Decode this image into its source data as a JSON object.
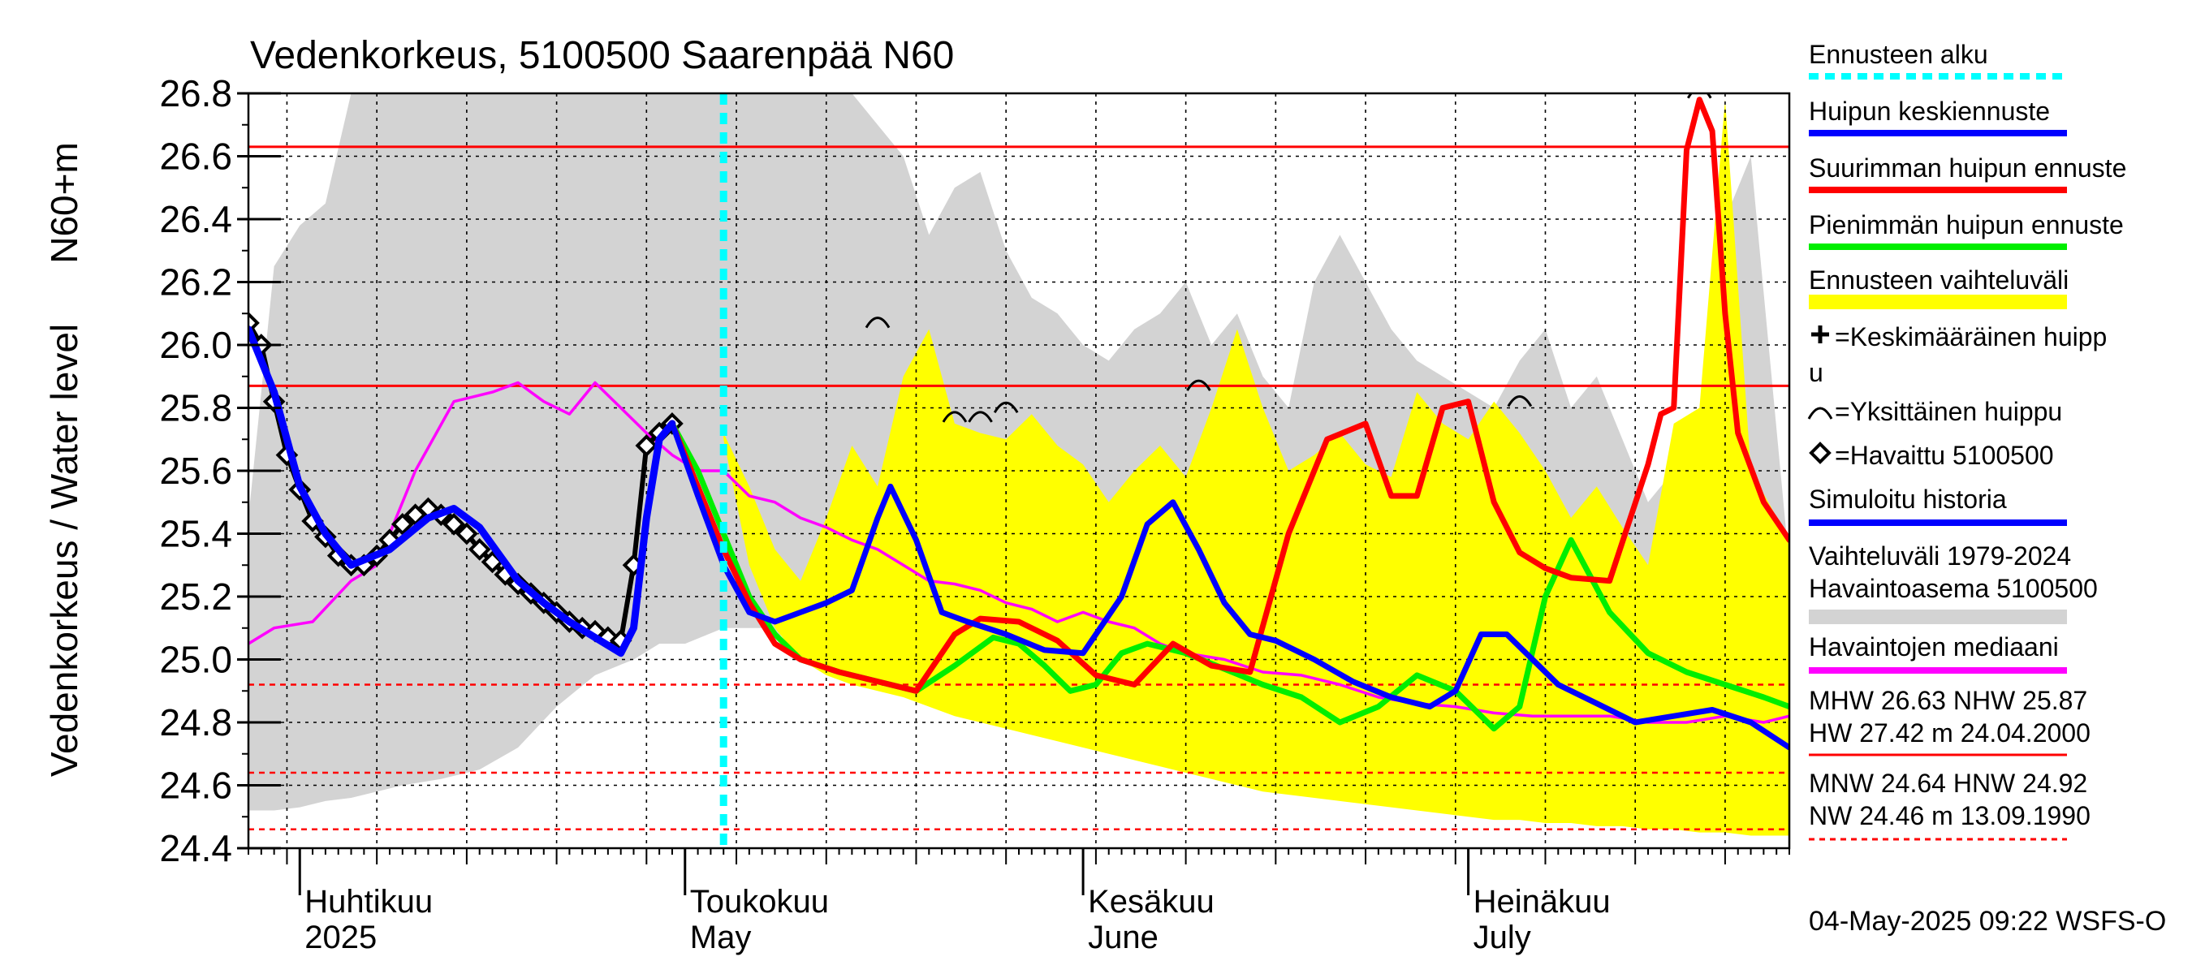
{
  "chart_data": {
    "type": "line",
    "title": "Vedenkorkeus, 5100500 Saarenpää N60",
    "ylabel_left": "Vedenkorkeus / Water level",
    "ylabel_unit": "N60+m",
    "ylim": [
      24.4,
      26.8
    ],
    "yticks": [
      "24.4",
      "24.6",
      "24.8",
      "25.0",
      "25.2",
      "25.4",
      "25.6",
      "25.8",
      "26.0",
      "26.2",
      "26.4",
      "26.6",
      "26.8"
    ],
    "xlim": [
      "2025-03-28",
      "2025-07-26"
    ],
    "month_labels": [
      {
        "date": "2025-04-01",
        "fi": "Huhtikuu",
        "en": "2025"
      },
      {
        "date": "2025-05-01",
        "fi": "Toukokuu",
        "en": "May"
      },
      {
        "date": "2025-06-01",
        "fi": "Kesäkuu",
        "en": "June"
      },
      {
        "date": "2025-07-01",
        "fi": "Heinäkuu",
        "en": "July"
      }
    ],
    "forecast_start": "2025-05-04",
    "reference_lines": [
      {
        "name": "MHW",
        "value": 26.63,
        "style": "solid",
        "color": "#ff0000"
      },
      {
        "name": "NHW",
        "value": 25.87,
        "style": "solid",
        "color": "#ff0000"
      },
      {
        "name": "HNW",
        "value": 24.92,
        "style": "dashed",
        "color": "#ff0000"
      },
      {
        "name": "MNW",
        "value": 24.64,
        "style": "dashed",
        "color": "#ff0000"
      },
      {
        "name": "NW",
        "value": 24.46,
        "style": "dashed",
        "color": "#ff0000"
      }
    ],
    "historical_band": {
      "color": "#d3d3d3",
      "dates": [
        "2025-03-28",
        "2025-03-30",
        "2025-04-01",
        "2025-04-03",
        "2025-04-05",
        "2025-04-07",
        "2025-04-09",
        "2025-04-12",
        "2025-04-15",
        "2025-04-18",
        "2025-04-21",
        "2025-04-24",
        "2025-04-27",
        "2025-04-29",
        "2025-05-01",
        "2025-05-04",
        "2025-05-07",
        "2025-05-10",
        "2025-05-12",
        "2025-05-14",
        "2025-05-16",
        "2025-05-18",
        "2025-05-20",
        "2025-05-22",
        "2025-05-24",
        "2025-05-26",
        "2025-05-28",
        "2025-05-30",
        "2025-06-01",
        "2025-06-03",
        "2025-06-05",
        "2025-06-07",
        "2025-06-09",
        "2025-06-11",
        "2025-06-13",
        "2025-06-15",
        "2025-06-17",
        "2025-06-19",
        "2025-06-21",
        "2025-06-23",
        "2025-06-25",
        "2025-06-27",
        "2025-06-29",
        "2025-07-01",
        "2025-07-03",
        "2025-07-05",
        "2025-07-07",
        "2025-07-09",
        "2025-07-11",
        "2025-07-13",
        "2025-07-15",
        "2025-07-17",
        "2025-07-19",
        "2025-07-21",
        "2025-07-23",
        "2025-07-26"
      ],
      "upper": [
        25.45,
        26.25,
        26.38,
        26.45,
        26.8,
        26.8,
        26.8,
        26.8,
        26.8,
        26.8,
        26.8,
        26.8,
        26.8,
        26.8,
        26.8,
        26.8,
        26.8,
        26.8,
        26.8,
        26.8,
        26.7,
        26.6,
        26.35,
        26.5,
        26.55,
        26.3,
        26.15,
        26.1,
        26.0,
        25.95,
        26.05,
        26.1,
        26.2,
        26.0,
        26.1,
        25.9,
        25.8,
        26.2,
        26.35,
        26.2,
        26.05,
        25.95,
        25.9,
        25.85,
        25.8,
        25.95,
        26.05,
        25.8,
        25.9,
        25.7,
        25.5,
        25.6,
        25.8,
        26.4,
        26.6,
        25.3
      ],
      "lower": [
        24.52,
        24.52,
        24.53,
        24.55,
        24.56,
        24.58,
        24.6,
        24.62,
        24.65,
        24.72,
        24.85,
        24.95,
        25.0,
        25.05,
        25.05,
        25.1,
        25.1,
        25.05,
        25.0,
        25.0,
        24.98,
        24.95,
        24.93,
        24.9,
        24.88,
        24.85,
        24.85,
        24.82,
        24.8,
        24.78,
        24.75,
        24.75,
        24.72,
        24.7,
        24.7,
        24.68,
        24.66,
        24.65,
        24.63,
        24.62,
        24.62,
        24.6,
        24.6,
        24.6,
        24.6,
        24.6,
        24.59,
        24.6,
        24.6,
        24.59,
        24.58,
        24.58,
        24.57,
        24.56,
        24.55,
        24.55
      ]
    },
    "forecast_band": {
      "color": "#ffff00",
      "dates": [
        "2025-05-04",
        "2025-05-06",
        "2025-05-08",
        "2025-05-10",
        "2025-05-12",
        "2025-05-14",
        "2025-05-16",
        "2025-05-18",
        "2025-05-20",
        "2025-05-22",
        "2025-05-24",
        "2025-05-26",
        "2025-05-28",
        "2025-05-30",
        "2025-06-01",
        "2025-06-03",
        "2025-06-05",
        "2025-06-07",
        "2025-06-09",
        "2025-06-11",
        "2025-06-13",
        "2025-06-15",
        "2025-06-17",
        "2025-06-19",
        "2025-06-21",
        "2025-06-23",
        "2025-06-25",
        "2025-06-27",
        "2025-06-29",
        "2025-07-01",
        "2025-07-03",
        "2025-07-05",
        "2025-07-07",
        "2025-07-09",
        "2025-07-11",
        "2025-07-13",
        "2025-07-15",
        "2025-07-17",
        "2025-07-19",
        "2025-07-21",
        "2025-07-23",
        "2025-07-26"
      ],
      "upper": [
        25.72,
        25.55,
        25.35,
        25.25,
        25.45,
        25.68,
        25.55,
        25.9,
        26.05,
        25.75,
        25.72,
        25.7,
        25.78,
        25.68,
        25.62,
        25.5,
        25.6,
        25.68,
        25.58,
        25.8,
        26.05,
        25.8,
        25.6,
        25.65,
        25.72,
        25.62,
        25.58,
        25.85,
        25.75,
        25.7,
        25.82,
        25.72,
        25.6,
        25.45,
        25.55,
        25.42,
        25.3,
        25.75,
        25.8,
        26.78,
        25.6,
        25.38
      ],
      "lower": [
        25.7,
        25.3,
        25.1,
        25.0,
        24.95,
        24.92,
        24.9,
        24.88,
        24.85,
        24.82,
        24.8,
        24.78,
        24.76,
        24.74,
        24.72,
        24.7,
        24.68,
        24.66,
        24.64,
        24.62,
        24.6,
        24.58,
        24.57,
        24.56,
        24.55,
        24.54,
        24.53,
        24.52,
        24.51,
        24.5,
        24.49,
        24.49,
        24.48,
        24.48,
        24.47,
        24.47,
        24.46,
        24.46,
        24.45,
        24.45,
        24.44,
        24.44
      ]
    },
    "series": [
      {
        "name": "Havaintojen mediaani",
        "color": "#ff00ff",
        "dates": [
          "2025-03-28",
          "2025-03-30",
          "2025-04-02",
          "2025-04-05",
          "2025-04-07",
          "2025-04-10",
          "2025-04-13",
          "2025-04-16",
          "2025-04-18",
          "2025-04-20",
          "2025-04-22",
          "2025-04-24",
          "2025-04-26",
          "2025-04-28",
          "2025-04-30",
          "2025-05-02",
          "2025-05-04",
          "2025-05-06",
          "2025-05-08",
          "2025-05-10",
          "2025-05-12",
          "2025-05-14",
          "2025-05-16",
          "2025-05-18",
          "2025-05-20",
          "2025-05-22",
          "2025-05-24",
          "2025-05-26",
          "2025-05-28",
          "2025-05-30",
          "2025-06-01",
          "2025-06-03",
          "2025-06-05",
          "2025-06-07",
          "2025-06-09",
          "2025-06-12",
          "2025-06-15",
          "2025-06-18",
          "2025-06-21",
          "2025-06-24",
          "2025-06-27",
          "2025-06-30",
          "2025-07-03",
          "2025-07-06",
          "2025-07-09",
          "2025-07-12",
          "2025-07-15",
          "2025-07-18",
          "2025-07-21",
          "2025-07-24",
          "2025-07-26"
        ],
        "values": [
          25.05,
          25.1,
          25.12,
          25.25,
          25.3,
          25.6,
          25.82,
          25.85,
          25.88,
          25.82,
          25.78,
          25.88,
          25.8,
          25.72,
          25.65,
          25.6,
          25.6,
          25.52,
          25.5,
          25.45,
          25.42,
          25.38,
          25.35,
          25.3,
          25.25,
          25.24,
          25.22,
          25.18,
          25.16,
          25.12,
          25.15,
          25.12,
          25.1,
          25.05,
          25.02,
          25.0,
          24.96,
          24.95,
          24.92,
          24.88,
          24.86,
          24.85,
          24.83,
          24.82,
          24.82,
          24.82,
          24.8,
          24.8,
          24.82,
          24.8,
          24.82
        ]
      },
      {
        "name": "Havaittu 5100500",
        "color": "#000000",
        "marker": "diamond",
        "dates": [
          "2025-03-28",
          "2025-03-29",
          "2025-03-30",
          "2025-03-31",
          "2025-04-01",
          "2025-04-02",
          "2025-04-03",
          "2025-04-04",
          "2025-04-05",
          "2025-04-06",
          "2025-04-07",
          "2025-04-08",
          "2025-04-09",
          "2025-04-10",
          "2025-04-11",
          "2025-04-12",
          "2025-04-13",
          "2025-04-14",
          "2025-04-15",
          "2025-04-16",
          "2025-04-17",
          "2025-04-18",
          "2025-04-19",
          "2025-04-20",
          "2025-04-21",
          "2025-04-22",
          "2025-04-23",
          "2025-04-24",
          "2025-04-25",
          "2025-04-26",
          "2025-04-27",
          "2025-04-28",
          "2025-04-29",
          "2025-04-30"
        ],
        "values": [
          26.07,
          26.0,
          25.82,
          25.65,
          25.54,
          25.44,
          25.39,
          25.33,
          25.3,
          25.3,
          25.33,
          25.38,
          25.43,
          25.46,
          25.48,
          25.46,
          25.43,
          25.4,
          25.35,
          25.31,
          25.27,
          25.24,
          25.21,
          25.18,
          25.15,
          25.12,
          25.1,
          25.09,
          25.07,
          25.06,
          25.3,
          25.68,
          25.72,
          25.75
        ]
      },
      {
        "name": "Simuloitu historia",
        "color": "#0000ff",
        "dates": [
          "2025-03-28",
          "2025-03-30",
          "2025-04-01",
          "2025-04-03",
          "2025-04-05",
          "2025-04-08",
          "2025-04-11",
          "2025-04-13",
          "2025-04-15",
          "2025-04-18",
          "2025-04-20",
          "2025-04-22",
          "2025-04-24",
          "2025-04-26",
          "2025-04-27",
          "2025-04-28",
          "2025-04-29",
          "2025-04-30"
        ],
        "values": [
          26.05,
          25.85,
          25.55,
          25.4,
          25.3,
          25.35,
          25.45,
          25.48,
          25.42,
          25.25,
          25.18,
          25.12,
          25.07,
          25.02,
          25.1,
          25.45,
          25.7,
          25.75
        ]
      },
      {
        "name": "Pienimmän huipun ennuste",
        "color": "#00ee00",
        "dates": [
          "2025-04-30",
          "2025-05-02",
          "2025-05-04",
          "2025-05-06",
          "2025-05-08",
          "2025-05-10",
          "2025-05-13",
          "2025-05-16",
          "2025-05-19",
          "2025-05-22",
          "2025-05-25",
          "2025-05-27",
          "2025-05-29",
          "2025-05-31",
          "2025-06-02",
          "2025-06-04",
          "2025-06-06",
          "2025-06-09",
          "2025-06-12",
          "2025-06-15",
          "2025-06-18",
          "2025-06-21",
          "2025-06-24",
          "2025-06-27",
          "2025-06-30",
          "2025-07-03",
          "2025-07-05",
          "2025-07-07",
          "2025-07-09",
          "2025-07-12",
          "2025-07-15",
          "2025-07-18",
          "2025-07-21",
          "2025-07-24",
          "2025-07-26"
        ],
        "values": [
          25.75,
          25.6,
          25.4,
          25.2,
          25.08,
          25.0,
          24.96,
          24.93,
          24.9,
          24.98,
          25.07,
          25.05,
          24.98,
          24.9,
          24.92,
          25.02,
          25.05,
          25.02,
          24.97,
          24.92,
          24.88,
          24.8,
          24.85,
          24.95,
          24.9,
          24.78,
          24.85,
          25.2,
          25.38,
          25.15,
          25.02,
          24.96,
          24.92,
          24.88,
          24.85
        ]
      },
      {
        "name": "Suurimman huipun ennuste",
        "color": "#ff0000",
        "dates": [
          "2025-04-30",
          "2025-05-02",
          "2025-05-04",
          "2025-05-06",
          "2025-05-08",
          "2025-05-10",
          "2025-05-13",
          "2025-05-16",
          "2025-05-19",
          "2025-05-22",
          "2025-05-24",
          "2025-05-27",
          "2025-05-30",
          "2025-06-02",
          "2025-06-05",
          "2025-06-08",
          "2025-06-11",
          "2025-06-14",
          "2025-06-17",
          "2025-06-20",
          "2025-06-23",
          "2025-06-25",
          "2025-06-27",
          "2025-06-29",
          "2025-07-01",
          "2025-07-03",
          "2025-07-05",
          "2025-07-07",
          "2025-07-09",
          "2025-07-12",
          "2025-07-15",
          "2025-07-16",
          "2025-07-17",
          "2025-07-18",
          "2025-07-19",
          "2025-07-20",
          "2025-07-21",
          "2025-07-22",
          "2025-07-24",
          "2025-07-26"
        ],
        "values": [
          25.75,
          25.55,
          25.35,
          25.18,
          25.05,
          25.0,
          24.96,
          24.93,
          24.9,
          25.08,
          25.13,
          25.12,
          25.06,
          24.95,
          24.92,
          25.05,
          24.98,
          24.96,
          25.4,
          25.7,
          25.75,
          25.52,
          25.52,
          25.8,
          25.82,
          25.5,
          25.34,
          25.29,
          25.26,
          25.25,
          25.62,
          25.78,
          25.8,
          26.62,
          26.78,
          26.68,
          26.1,
          25.72,
          25.5,
          25.38
        ]
      },
      {
        "name": "Huipun keskiennuste",
        "color": "#0000ff",
        "dates": [
          "2025-04-30",
          "2025-05-02",
          "2025-05-04",
          "2025-05-06",
          "2025-05-08",
          "2025-05-10",
          "2025-05-12",
          "2025-05-14",
          "2025-05-16",
          "2025-05-17",
          "2025-05-19",
          "2025-05-21",
          "2025-05-23",
          "2025-05-26",
          "2025-05-29",
          "2025-06-01",
          "2025-06-04",
          "2025-06-06",
          "2025-06-08",
          "2025-06-10",
          "2025-06-12",
          "2025-06-14",
          "2025-06-16",
          "2025-06-19",
          "2025-06-22",
          "2025-06-25",
          "2025-06-28",
          "2025-06-30",
          "2025-07-02",
          "2025-07-04",
          "2025-07-06",
          "2025-07-08",
          "2025-07-11",
          "2025-07-14",
          "2025-07-17",
          "2025-07-20",
          "2025-07-23",
          "2025-07-26"
        ],
        "values": [
          25.75,
          25.52,
          25.3,
          25.15,
          25.12,
          25.15,
          25.18,
          25.22,
          25.45,
          25.55,
          25.38,
          25.15,
          25.12,
          25.08,
          25.03,
          25.02,
          25.2,
          25.43,
          25.5,
          25.35,
          25.18,
          25.08,
          25.06,
          25.0,
          24.93,
          24.88,
          24.85,
          24.9,
          25.08,
          25.08,
          25.0,
          24.92,
          24.86,
          24.8,
          24.82,
          24.84,
          24.8,
          24.72
        ]
      }
    ],
    "peak_markers": [
      {
        "date": "2025-05-16",
        "value": 26.05
      },
      {
        "date": "2025-05-22",
        "value": 25.75
      },
      {
        "date": "2025-05-24",
        "value": 25.75
      },
      {
        "date": "2025-05-26",
        "value": 25.78
      },
      {
        "date": "2025-06-10",
        "value": 25.85
      },
      {
        "date": "2025-07-05",
        "value": 25.8
      },
      {
        "date": "2025-07-19",
        "value": 26.78
      }
    ],
    "legend": [
      {
        "label": "Ennusteen alku",
        "swatch": "dash-line",
        "color": "#00ffff"
      },
      {
        "label": "Huipun keskiennuste",
        "swatch": "line",
        "color": "#0000ff"
      },
      {
        "label": "Suurimman huipun ennuste",
        "swatch": "line",
        "color": "#ff0000"
      },
      {
        "label": "Pienimmän huipun ennuste",
        "swatch": "line",
        "color": "#00ee00"
      },
      {
        "label": "Ennusteen vaihteluväli",
        "swatch": "bar",
        "color": "#ffff00"
      },
      {
        "label": "=Keskimääräinen huipp",
        "label2": "u",
        "swatch": "plus",
        "color": "#000000"
      },
      {
        "label": "=Yksittäinen huippu",
        "swatch": "arc",
        "color": "#000000"
      },
      {
        "label": "=Havaittu 5100500",
        "swatch": "diamond",
        "color": "#000000"
      },
      {
        "label": "Simuloitu historia",
        "swatch": "line",
        "color": "#0000ff"
      },
      {
        "label": "Vaihteluväli 1979-2024",
        "label2": " Havaintoasema 5100500",
        "swatch": "bar",
        "color": "#d3d3d3"
      },
      {
        "label": "Havaintojen mediaani",
        "swatch": "line",
        "color": "#ff00ff"
      }
    ],
    "stats": [
      {
        "text": "MHW  26.63 NHW  25.87",
        "text2": "HW  27.42 m 24.04.2000",
        "line": "solid"
      },
      {
        "text": "MNW  24.64 HNW  24.92",
        "text2": "NW  24.46 m 13.09.1990",
        "line": "dashed"
      }
    ],
    "timestamp": "04-May-2025 09:22 WSFS-O"
  }
}
